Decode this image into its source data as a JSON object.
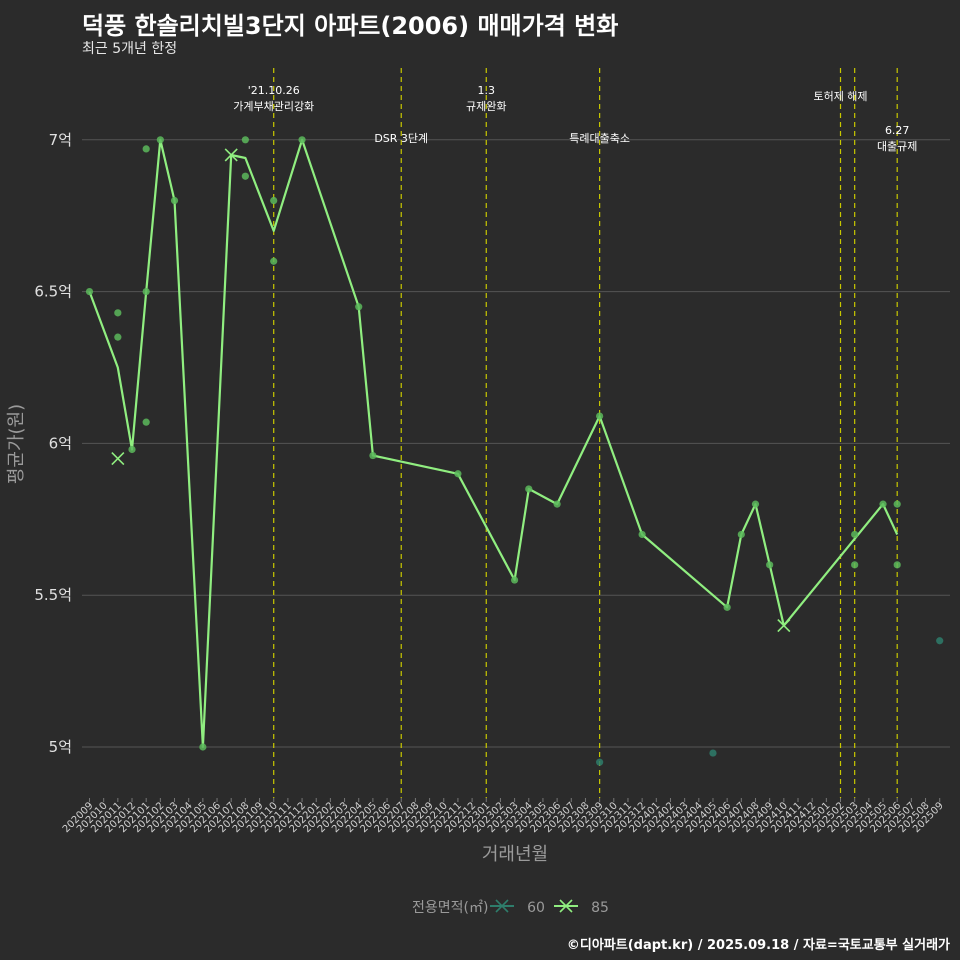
{
  "title": "덕풍 한솔리치빌3단지 아파트(2006) 매매가격 변화",
  "subtitle": "최근 5개년 한정",
  "caption": "©디아파트(dapt.kr) / 2025.09.18 / 자료=국토교통부 실거래가",
  "colors": {
    "background": "#2b2b2b",
    "grid": "#555555",
    "event_line": "#c8c800",
    "series_60": "#2e7d6b",
    "series_85": "#90ee80",
    "point_85": "#5cb85c"
  },
  "chart_data": {
    "type": "line",
    "title": "덕풍 한솔리치빌3단지 아파트(2006) 매매가격 변화",
    "subtitle": "최근 5개년 한정",
    "xlabel": "거래년월",
    "ylabel": "평균가(원)",
    "ylim": [
      4.85,
      7.25
    ],
    "y_ticks": [
      {
        "value": 5,
        "label": "5억"
      },
      {
        "value": 5.5,
        "label": "5.5억"
      },
      {
        "value": 6,
        "label": "6억"
      },
      {
        "value": 6.5,
        "label": "6.5억"
      },
      {
        "value": 7,
        "label": "7억"
      }
    ],
    "categories": [
      "202009",
      "202010",
      "202011",
      "202012",
      "202101",
      "202102",
      "202103",
      "202104",
      "202105",
      "202106",
      "202107",
      "202108",
      "202109",
      "202110",
      "202111",
      "202112",
      "202201",
      "202202",
      "202203",
      "202204",
      "202205",
      "202206",
      "202207",
      "202208",
      "202209",
      "202210",
      "202211",
      "202212",
      "202301",
      "202302",
      "202303",
      "202304",
      "202305",
      "202306",
      "202307",
      "202308",
      "202309",
      "202310",
      "202311",
      "202312",
      "202401",
      "202402",
      "202403",
      "202404",
      "202405",
      "202406",
      "202407",
      "202408",
      "202409",
      "202410",
      "202411",
      "202412",
      "202501",
      "202502",
      "202503",
      "202504",
      "202505",
      "202506",
      "202507",
      "202508",
      "202509"
    ],
    "events": [
      {
        "month": "202110",
        "label": "'21.10.26\n가계부채관리강화",
        "label_level": 0
      },
      {
        "month": "202207",
        "label": "DSR 3단계",
        "label_level": 2
      },
      {
        "month": "202301",
        "label": "1.3\n규제완화",
        "label_level": 0
      },
      {
        "month": "202309",
        "label": "특례대출축소",
        "label_level": 2
      },
      {
        "month": "202502",
        "label": "토허제 해제",
        "label_level": 1
      },
      {
        "month": "202503",
        "label": "",
        "label_level": 1
      },
      {
        "month": "202506",
        "label": "6.27\n대출규제",
        "label_level": 3
      }
    ],
    "series": [
      {
        "name": "60",
        "line": [],
        "points": [
          {
            "x": "202309",
            "y": 4.95
          },
          {
            "x": "202405",
            "y": 4.98
          },
          {
            "x": "202509",
            "y": 5.35
          }
        ]
      },
      {
        "name": "85",
        "line": [
          {
            "x": "202009",
            "y": 6.5
          },
          {
            "x": "202011",
            "y": 6.25
          },
          {
            "x": "202012",
            "y": 5.98
          },
          {
            "x": "202101",
            "y": 6.5
          },
          {
            "x": "202102",
            "y": 7.0
          },
          {
            "x": "202103",
            "y": 6.8
          },
          {
            "x": "202105",
            "y": 5.0
          },
          {
            "x": "202107",
            "y": 6.95
          },
          {
            "x": "202108",
            "y": 6.94
          },
          {
            "x": "202110",
            "y": 6.7
          },
          {
            "x": "202112",
            "y": 7.0
          },
          {
            "x": "202204",
            "y": 6.45
          },
          {
            "x": "202205",
            "y": 5.96
          },
          {
            "x": "202211",
            "y": 5.9
          },
          {
            "x": "202303",
            "y": 5.55
          },
          {
            "x": "202304",
            "y": 5.85
          },
          {
            "x": "202306",
            "y": 5.8
          },
          {
            "x": "202309",
            "y": 6.09
          },
          {
            "x": "202312",
            "y": 5.7
          },
          {
            "x": "202406",
            "y": 5.46
          },
          {
            "x": "202407",
            "y": 5.7
          },
          {
            "x": "202408",
            "y": 5.8
          },
          {
            "x": "202409",
            "y": 5.6
          },
          {
            "x": "202410",
            "y": 5.4
          },
          {
            "x": "202505",
            "y": 5.8
          },
          {
            "x": "202506",
            "y": 5.7
          }
        ],
        "points": [
          {
            "x": "202009",
            "y": 6.5
          },
          {
            "x": "202011",
            "y": 6.43
          },
          {
            "x": "202011",
            "y": 6.35
          },
          {
            "x": "202012",
            "y": 5.98
          },
          {
            "x": "202101",
            "y": 6.97
          },
          {
            "x": "202101",
            "y": 6.5
          },
          {
            "x": "202101",
            "y": 6.07
          },
          {
            "x": "202102",
            "y": 7.0
          },
          {
            "x": "202103",
            "y": 6.8
          },
          {
            "x": "202105",
            "y": 5.0
          },
          {
            "x": "202108",
            "y": 7.0
          },
          {
            "x": "202108",
            "y": 6.88
          },
          {
            "x": "202110",
            "y": 6.8
          },
          {
            "x": "202110",
            "y": 6.6
          },
          {
            "x": "202112",
            "y": 7.0
          },
          {
            "x": "202204",
            "y": 6.45
          },
          {
            "x": "202205",
            "y": 5.96
          },
          {
            "x": "202211",
            "y": 5.9
          },
          {
            "x": "202303",
            "y": 5.55
          },
          {
            "x": "202304",
            "y": 5.85
          },
          {
            "x": "202306",
            "y": 5.8
          },
          {
            "x": "202309",
            "y": 6.09
          },
          {
            "x": "202312",
            "y": 5.7
          },
          {
            "x": "202406",
            "y": 5.46
          },
          {
            "x": "202407",
            "y": 5.7
          },
          {
            "x": "202408",
            "y": 5.8
          },
          {
            "x": "202409",
            "y": 5.6
          },
          {
            "x": "202503",
            "y": 5.7
          },
          {
            "x": "202503",
            "y": 5.6
          },
          {
            "x": "202505",
            "y": 5.8
          },
          {
            "x": "202506",
            "y": 5.8
          },
          {
            "x": "202506",
            "y": 5.6
          }
        ],
        "cross_markers": [
          {
            "x": "202011",
            "y": 5.95
          },
          {
            "x": "202107",
            "y": 6.95
          },
          {
            "x": "202410",
            "y": 5.4
          }
        ]
      }
    ],
    "legend": {
      "title": "전용면적(㎡)",
      "position": "bottom",
      "items": [
        "60",
        "85"
      ]
    }
  }
}
